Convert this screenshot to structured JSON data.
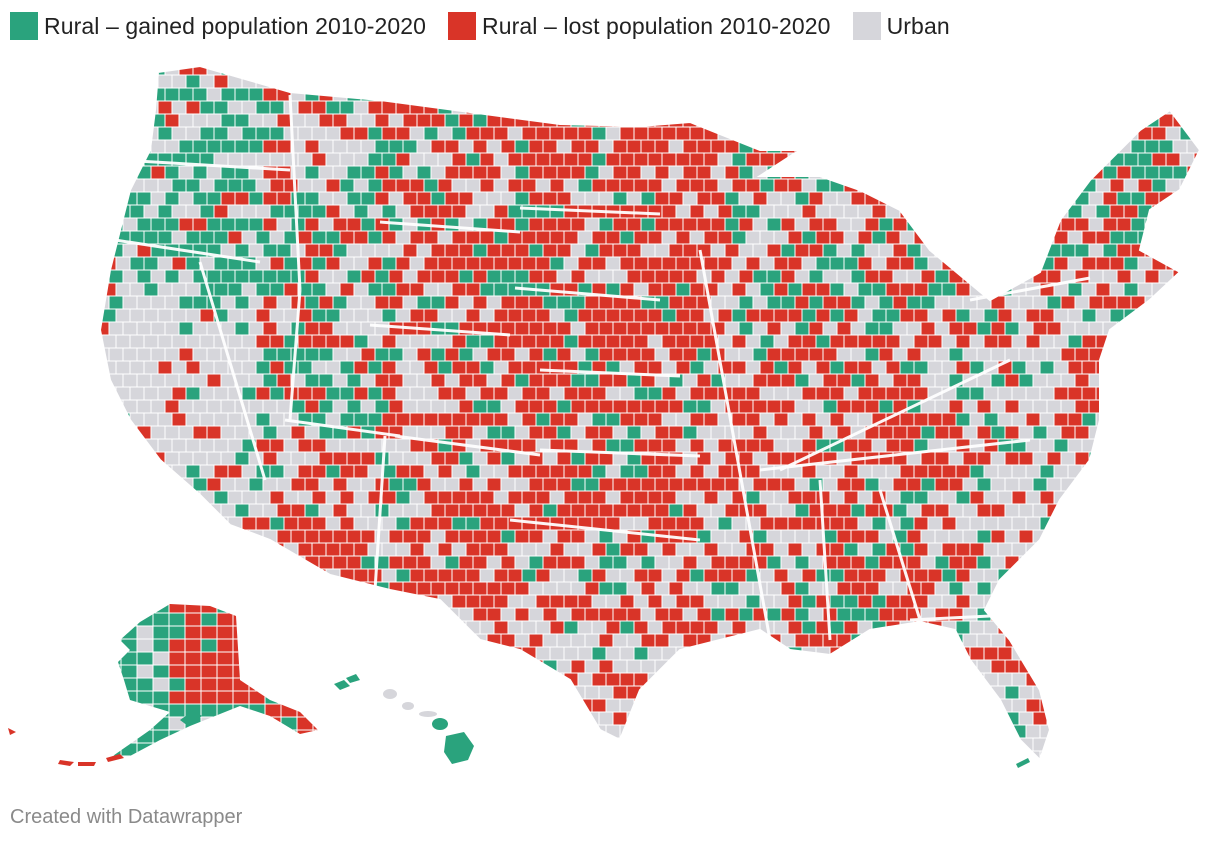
{
  "legend": {
    "items": [
      {
        "label": "Rural – gained population 2010-2020",
        "color": "#2aa37d",
        "category": "gained"
      },
      {
        "label": "Rural – lost population 2010-2020",
        "color": "#d93428",
        "category": "lost"
      },
      {
        "label": "Urban",
        "color": "#d6d6db",
        "category": "urban"
      }
    ]
  },
  "map": {
    "region": "United States counties",
    "border_color": "#ffffff"
  },
  "footer": {
    "credit": "Created with Datawrapper"
  }
}
